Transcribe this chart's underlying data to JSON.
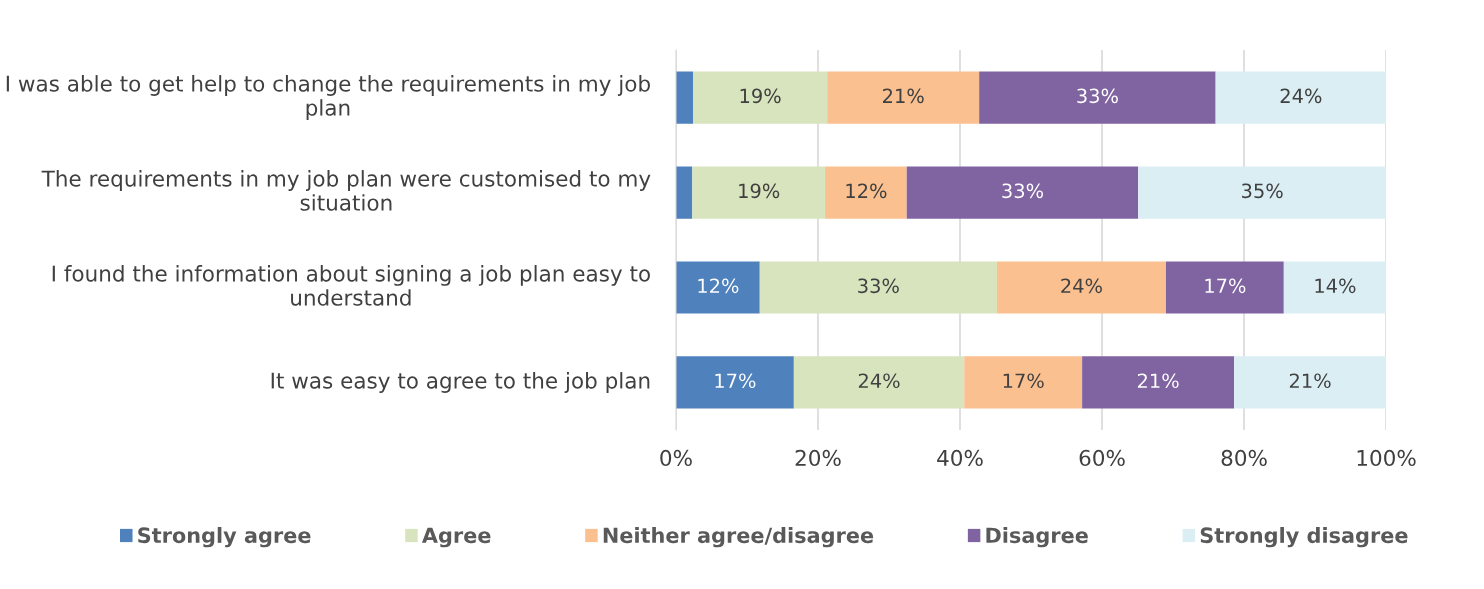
{
  "chart_data": {
    "type": "bar",
    "orientation": "horizontal",
    "stacked": true,
    "categories": [
      "I was able to get help to change the requirements in my job plan",
      "The requirements in my job plan were customised to my situation",
      "I found the information about signing a job plan easy to understand",
      "It was easy to agree to the job plan"
    ],
    "series": [
      {
        "name": "Strongly agree",
        "color": "#4f81bd",
        "values": [
          2.4,
          2.3,
          11.8,
          16.6
        ],
        "value_labels": [
          null,
          null,
          "12%",
          "17%"
        ]
      },
      {
        "name": "Agree",
        "color": "#d7e4bd",
        "values": [
          18.9,
          18.7,
          33.4,
          24.0
        ],
        "value_labels": [
          "19%",
          "19%",
          "33%",
          "24%"
        ]
      },
      {
        "name": "Neither agree/disagree",
        "color": "#fac090",
        "values": [
          21.4,
          11.5,
          23.8,
          16.6
        ],
        "value_labels": [
          "21%",
          "12%",
          "24%",
          "17%"
        ]
      },
      {
        "name": "Disagree",
        "color": "#8064a2",
        "values": [
          33.3,
          32.6,
          16.6,
          21.4
        ],
        "value_labels": [
          "33%",
          "33%",
          "17%",
          "21%"
        ]
      },
      {
        "name": "Strongly disagree",
        "color": "#dbeef4",
        "values": [
          24.0,
          34.9,
          14.4,
          21.4
        ],
        "value_labels": [
          "24%",
          "35%",
          "14%",
          "21%"
        ]
      }
    ],
    "xlim": [
      0,
      100
    ],
    "xticks": [
      {
        "value": 0,
        "label": "0%"
      },
      {
        "value": 20,
        "label": "20%"
      },
      {
        "value": 40,
        "label": "40%"
      },
      {
        "value": 60,
        "label": "60%"
      },
      {
        "value": 80,
        "label": "80%"
      },
      {
        "value": 100,
        "label": "100%"
      }
    ],
    "grid": "x",
    "legend": "bottom"
  }
}
